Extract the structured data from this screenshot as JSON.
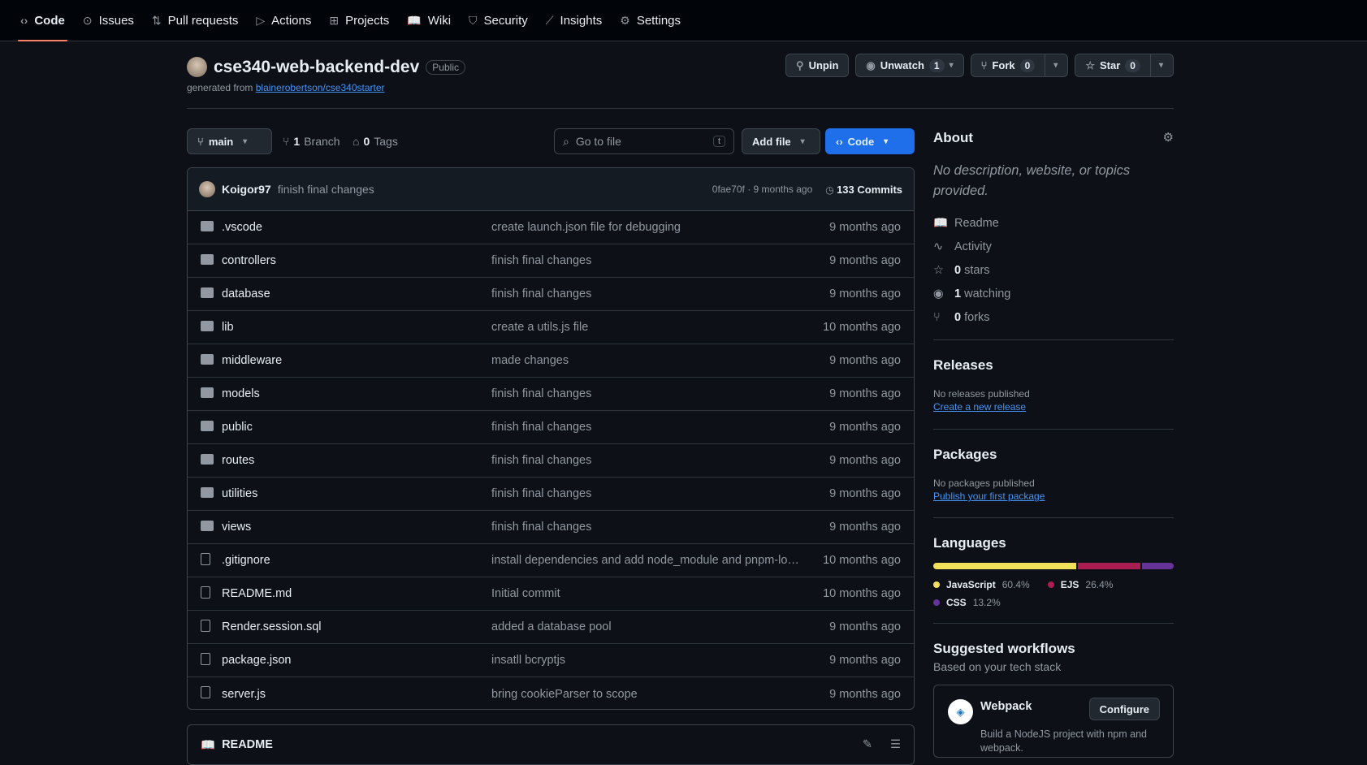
{
  "nav": [
    {
      "label": "Code",
      "icon": "code-icon",
      "glyph": "‹›",
      "active": true
    },
    {
      "label": "Issues",
      "icon": "issue-icon",
      "glyph": "⊙"
    },
    {
      "label": "Pull requests",
      "icon": "pull-request-icon",
      "glyph": "⇅"
    },
    {
      "label": "Actions",
      "icon": "play-icon",
      "glyph": "▷"
    },
    {
      "label": "Projects",
      "icon": "table-icon",
      "glyph": "⊞"
    },
    {
      "label": "Wiki",
      "icon": "book-icon",
      "glyph": "📖"
    },
    {
      "label": "Security",
      "icon": "shield-icon",
      "glyph": "⛉"
    },
    {
      "label": "Insights",
      "icon": "graph-icon",
      "glyph": "⟋"
    },
    {
      "label": "Settings",
      "icon": "gear-icon",
      "glyph": "⚙"
    }
  ],
  "repo": {
    "name": "cse340-web-backend-dev",
    "visibility": "Public",
    "generated_prefix": "generated from",
    "template": "blainerobertson/cse340starter"
  },
  "actions": {
    "unpin": "Unpin",
    "unwatch": "Unwatch",
    "watch_count": "1",
    "fork": "Fork",
    "fork_count": "0",
    "star": "Star",
    "star_count": "0"
  },
  "toolbar": {
    "branch": "main",
    "branch_count": "1",
    "branch_label": "Branch",
    "tag_count": "0",
    "tag_label": "Tags",
    "search_placeholder": "Go to file",
    "search_key": "t",
    "add_file": "Add file",
    "code": "Code"
  },
  "commit": {
    "user": "Koigor97",
    "message": "finish final changes",
    "hash": "0fae70f",
    "age": "9 months ago",
    "separator": "·",
    "count": "133 Commits"
  },
  "files": [
    {
      "type": "folder",
      "name": ".vscode",
      "message": "create launch.json file for debugging",
      "age": "9 months ago"
    },
    {
      "type": "folder",
      "name": "controllers",
      "message": "finish final changes",
      "age": "9 months ago"
    },
    {
      "type": "folder",
      "name": "database",
      "message": "finish final changes",
      "age": "9 months ago"
    },
    {
      "type": "folder",
      "name": "lib",
      "message": "create a utils.js file",
      "age": "10 months ago"
    },
    {
      "type": "folder",
      "name": "middleware",
      "message": "made changes",
      "age": "9 months ago"
    },
    {
      "type": "folder",
      "name": "models",
      "message": "finish final changes",
      "age": "9 months ago"
    },
    {
      "type": "folder",
      "name": "public",
      "message": "finish final changes",
      "age": "9 months ago"
    },
    {
      "type": "folder",
      "name": "routes",
      "message": "finish final changes",
      "age": "9 months ago"
    },
    {
      "type": "folder",
      "name": "utilities",
      "message": "finish final changes",
      "age": "9 months ago"
    },
    {
      "type": "folder",
      "name": "views",
      "message": "finish final changes",
      "age": "9 months ago"
    },
    {
      "type": "file",
      "name": ".gitignore",
      "message": "install dependencies and add node_module and pnpm-lock.yaml to .gitignore",
      "age": "10 months ago"
    },
    {
      "type": "file",
      "name": "README.md",
      "message": "Initial commit",
      "age": "10 months ago"
    },
    {
      "type": "file",
      "name": "Render.session.sql",
      "message": "added a database pool",
      "age": "9 months ago"
    },
    {
      "type": "file",
      "name": "package.json",
      "message": "insatll bcryptjs",
      "age": "9 months ago"
    },
    {
      "type": "file",
      "name": "server.js",
      "message": "bring cookieParser to scope",
      "age": "9 months ago"
    }
  ],
  "readme": {
    "title": "README"
  },
  "about": {
    "title": "About",
    "description": "No description, website, or topics provided.",
    "links": [
      {
        "icon": "book-icon",
        "glyph": "📖",
        "count": "",
        "label": "Readme"
      },
      {
        "icon": "pulse-icon",
        "glyph": "∿",
        "count": "",
        "label": "Activity"
      },
      {
        "icon": "star-icon",
        "glyph": "☆",
        "count": "0",
        "label": "stars"
      },
      {
        "icon": "eye-icon",
        "glyph": "◉",
        "count": "1",
        "label": "watching"
      },
      {
        "icon": "fork-icon",
        "glyph": "⑂",
        "count": "0",
        "label": "forks"
      }
    ]
  },
  "releases": {
    "title": "Releases",
    "empty": "No releases published",
    "link": "Create a new release"
  },
  "packages": {
    "title": "Packages",
    "empty": "No packages published",
    "link": "Publish your first package"
  },
  "languages": {
    "title": "Languages",
    "items": [
      {
        "name": "JavaScript",
        "percent": "60.4%",
        "value": 60.4,
        "color": "#f1e05a"
      },
      {
        "name": "EJS",
        "percent": "26.4%",
        "value": 26.4,
        "color": "#a91e50"
      },
      {
        "name": "CSS",
        "percent": "13.2%",
        "value": 13.2,
        "color": "#663399"
      }
    ]
  },
  "workflows": {
    "title": "Suggested workflows",
    "subtitle": "Based on your tech stack",
    "name": "Webpack",
    "description": "Build a NodeJS project with npm and webpack.",
    "configure": "Configure"
  }
}
